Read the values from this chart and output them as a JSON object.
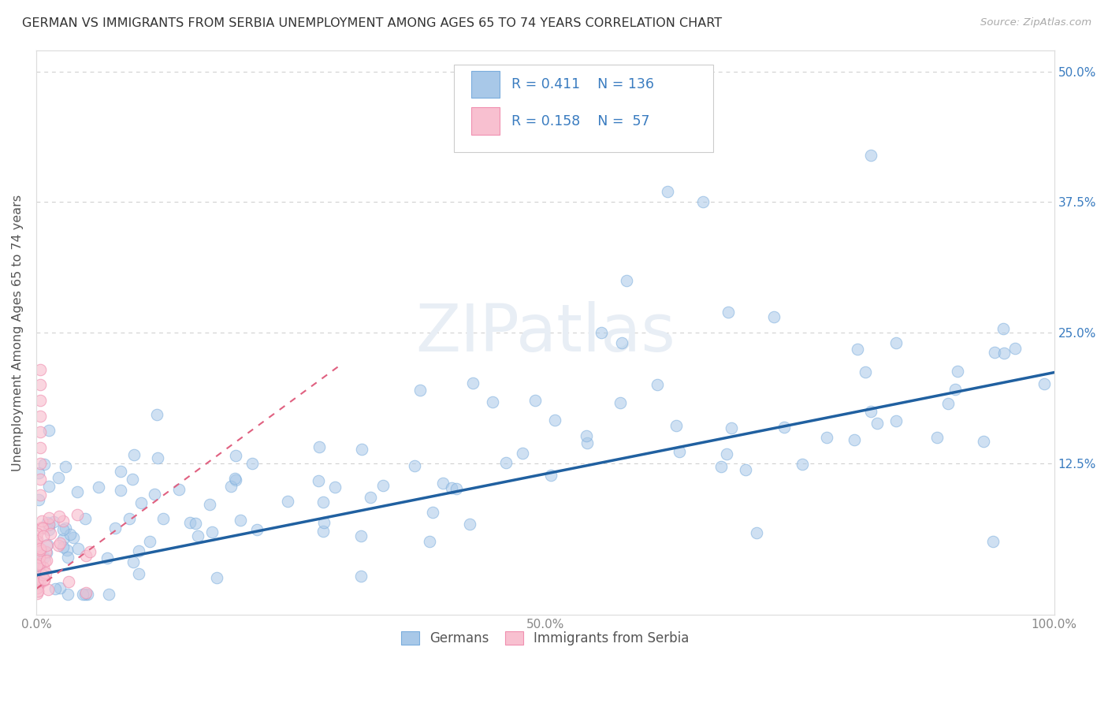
{
  "title": "GERMAN VS IMMIGRANTS FROM SERBIA UNEMPLOYMENT AMONG AGES 65 TO 74 YEARS CORRELATION CHART",
  "source": "Source: ZipAtlas.com",
  "ylabel": "Unemployment Among Ages 65 to 74 years",
  "xlim": [
    0,
    1.0
  ],
  "ylim": [
    -0.02,
    0.52
  ],
  "xticks": [
    0.0,
    0.25,
    0.5,
    0.75,
    1.0
  ],
  "xticklabels": [
    "0.0%",
    "",
    "50.0%",
    "",
    "100.0%"
  ],
  "yticks": [
    0.0,
    0.125,
    0.25,
    0.375,
    0.5
  ],
  "yticklabels_left": [
    "",
    "",
    "",
    "",
    ""
  ],
  "yticklabels_right": [
    "",
    "12.5%",
    "25.0%",
    "37.5%",
    "50.0%"
  ],
  "german_R": 0.411,
  "german_N": 136,
  "serbia_R": 0.158,
  "serbia_N": 57,
  "blue_color": "#a8c8e8",
  "blue_edge": "#7aaddd",
  "pink_color": "#f8c0d0",
  "pink_edge": "#f090b0",
  "trendline_blue": "#2060a0",
  "trendline_pink": "#e06080",
  "watermark_color": "#e8eef5",
  "legend_label_1": "Germans",
  "legend_label_2": "Immigrants from Serbia",
  "background_color": "#ffffff",
  "grid_color": "#cccccc",
  "title_color": "#333333",
  "axis_label_color": "#555555",
  "tick_label_color": "#888888",
  "right_tick_color": "#3a7cc0",
  "legend_text_color": "#3a7cc0"
}
